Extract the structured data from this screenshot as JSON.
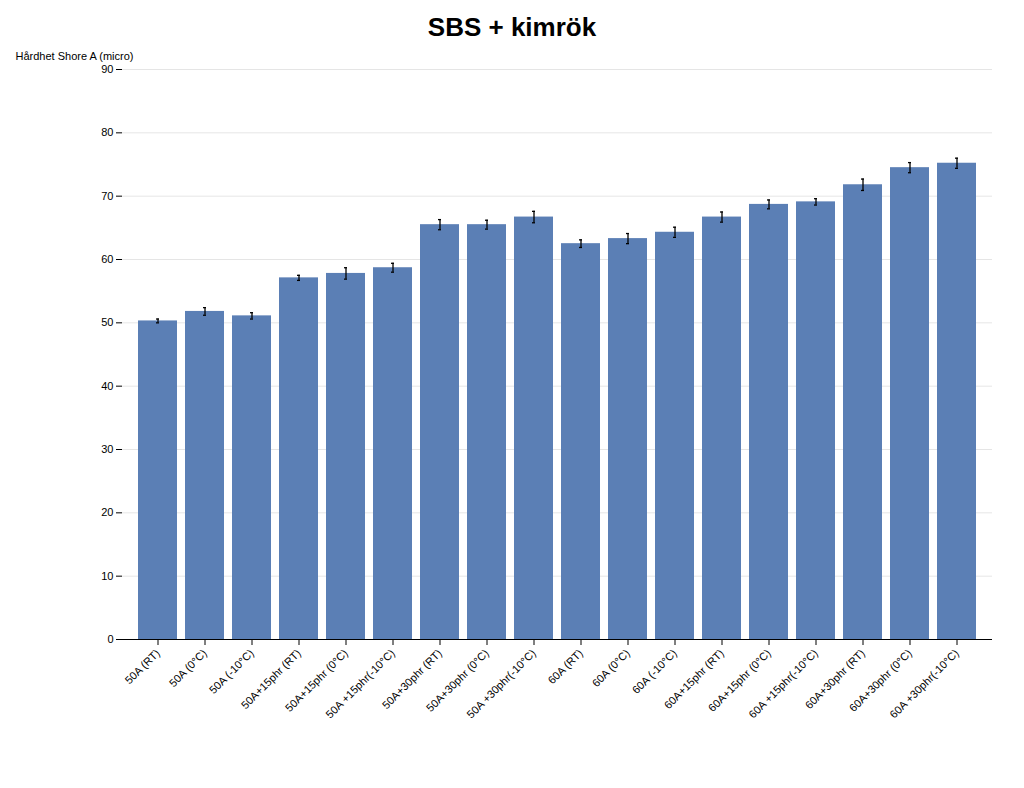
{
  "chart_data": {
    "type": "bar",
    "title": "SBS + kimrök",
    "ylabel": "Hårdhet Shore A (micro)",
    "categories": [
      "50A (RT)",
      "50A (0°C)",
      "50A (-10°C)",
      "50A+15phr (RT)",
      "50A+15phr (0°C)",
      "50A +15phr(-10°C)",
      "50A+30phr (RT)",
      "50A+30phr (0°C)",
      "50A +30phr(-10°C)",
      "60A (RT)",
      "60A (0°C)",
      "60A (-10°C)",
      "60A+15phr (RT)",
      "60A+15phr (0°C)",
      "60A +15phr(-10°C)",
      "60A+30phr (RT)",
      "60A+30phr (0°C)",
      "60A +30phr(-10°C)"
    ],
    "values": [
      50.3,
      51.8,
      51.1,
      57.1,
      57.8,
      58.7,
      65.5,
      65.5,
      66.7,
      62.5,
      63.3,
      64.3,
      66.7,
      68.7,
      69.1,
      71.8,
      74.5,
      75.2
    ],
    "errors": [
      0.3,
      0.6,
      0.5,
      0.4,
      0.9,
      0.7,
      0.8,
      0.7,
      0.9,
      0.6,
      0.8,
      0.8,
      0.8,
      0.7,
      0.5,
      0.9,
      0.8,
      0.8
    ],
    "color": "#5b7fb5",
    "ylim": [
      0,
      90
    ],
    "yticks": [
      0,
      10,
      20,
      30,
      40,
      50,
      60,
      70,
      80,
      90
    ],
    "grid": true
  }
}
